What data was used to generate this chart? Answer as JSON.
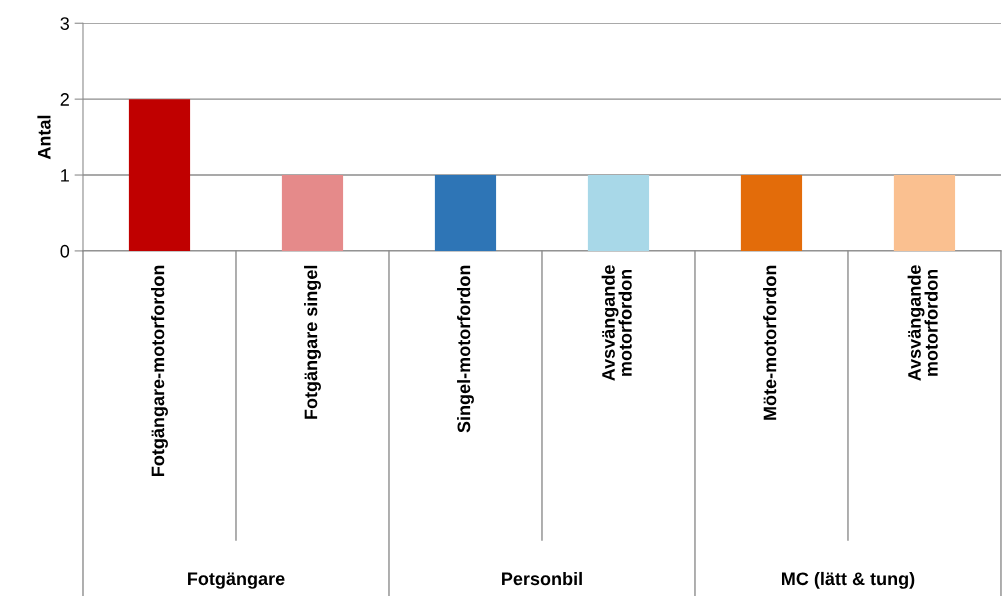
{
  "chart_data": {
    "type": "bar",
    "ylabel": "Antal",
    "categories": [
      "Fotgängare-motorfordon",
      "Fotgängare singel",
      "Singel-motorfordon",
      "Avsvängande\nmotorfordon",
      "Möte-motorfordon",
      "Avsvängande\nmotorfordon"
    ],
    "values": [
      2,
      1,
      1,
      1,
      1,
      1
    ],
    "colors": [
      "#c00000",
      "#e58a8a",
      "#2e75b6",
      "#a8d8e8",
      "#e36c0a",
      "#fac090"
    ],
    "ylim": [
      0,
      3
    ],
    "yticks": [
      0,
      1,
      2,
      3
    ],
    "grid": "y",
    "annotations": [
      "Fotgängare",
      "Personbil",
      "MC (lätt & tung)"
    ]
  }
}
